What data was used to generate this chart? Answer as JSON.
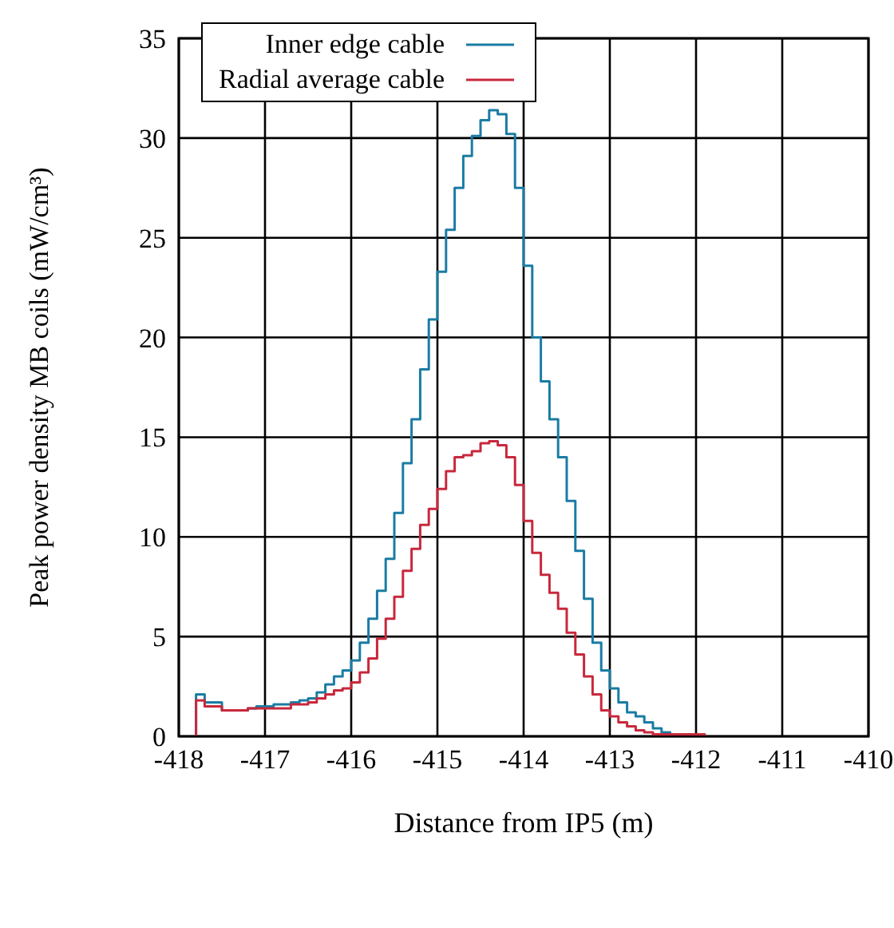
{
  "chart_data": {
    "type": "histogram",
    "xlabel": "Distance from IP5 (m)",
    "ylabel": "Peak power density MB coils (mW/cm³)",
    "bins": [
      -417.8,
      -417.7,
      -417.6,
      -417.5,
      -417.4,
      -417.3,
      -417.2,
      -417.1,
      -417.0,
      -416.9,
      -416.8,
      -416.7,
      -416.6,
      -416.5,
      -416.4,
      -416.3,
      -416.2,
      -416.1,
      -416.0,
      -415.9,
      -415.8,
      -415.7,
      -415.6,
      -415.5,
      -415.4,
      -415.3,
      -415.2,
      -415.1,
      -415.0,
      -414.9,
      -414.8,
      -414.7,
      -414.6,
      -414.5,
      -414.4,
      -414.3,
      -414.2,
      -414.1,
      -414.0,
      -413.9,
      -413.8,
      -413.7,
      -413.6,
      -413.5,
      -413.4,
      -413.3,
      -413.2,
      -413.1,
      -413.0,
      -412.9,
      -412.8,
      -412.7,
      -412.6,
      -412.5,
      -412.4,
      -412.3,
      -412.2,
      -412.1,
      -412.0,
      -411.9
    ],
    "series": [
      {
        "name": "Inner edge cable",
        "color": "#1a7ca3",
        "values": [
          2.1,
          1.7,
          1.7,
          1.3,
          1.3,
          1.3,
          1.4,
          1.5,
          1.5,
          1.6,
          1.6,
          1.7,
          1.8,
          1.9,
          2.2,
          2.6,
          3.0,
          3.3,
          3.8,
          4.7,
          5.9,
          7.3,
          8.9,
          11.2,
          13.7,
          15.9,
          18.4,
          20.9,
          23.3,
          25.4,
          27.5,
          29.1,
          30.1,
          30.9,
          31.4,
          31.2,
          30.2,
          27.5,
          23.6,
          20.0,
          17.8,
          15.9,
          14.0,
          11.8,
          9.3,
          6.9,
          4.7,
          3.3,
          2.4,
          1.7,
          1.2,
          1.0,
          0.7,
          0.4,
          0.2,
          0.1,
          0.1,
          0.1,
          0.1
        ]
      },
      {
        "name": "Radial average cable",
        "color": "#c8283c",
        "values": [
          1.8,
          1.5,
          1.5,
          1.3,
          1.3,
          1.3,
          1.4,
          1.4,
          1.4,
          1.4,
          1.4,
          1.6,
          1.6,
          1.7,
          1.9,
          2.1,
          2.3,
          2.4,
          2.7,
          3.2,
          3.9,
          4.9,
          5.9,
          7.0,
          8.3,
          9.4,
          10.6,
          11.4,
          12.4,
          13.3,
          14.0,
          14.1,
          14.3,
          14.7,
          14.8,
          14.6,
          14.0,
          12.6,
          10.8,
          9.2,
          8.1,
          7.2,
          6.4,
          5.2,
          4.1,
          3.0,
          2.1,
          1.3,
          1.0,
          0.7,
          0.5,
          0.3,
          0.2,
          0.1,
          0.1,
          0.1,
          0.1,
          0.1,
          0.1
        ]
      }
    ],
    "xlim": [
      -418,
      -410
    ],
    "xticks": [
      -418,
      -417,
      -416,
      -415,
      -414,
      -413,
      -412,
      -411,
      -410
    ],
    "ylim": [
      0,
      35
    ],
    "yticks": [
      0,
      5,
      10,
      15,
      20,
      25,
      30,
      35
    ],
    "grid": true,
    "legend": "top"
  }
}
